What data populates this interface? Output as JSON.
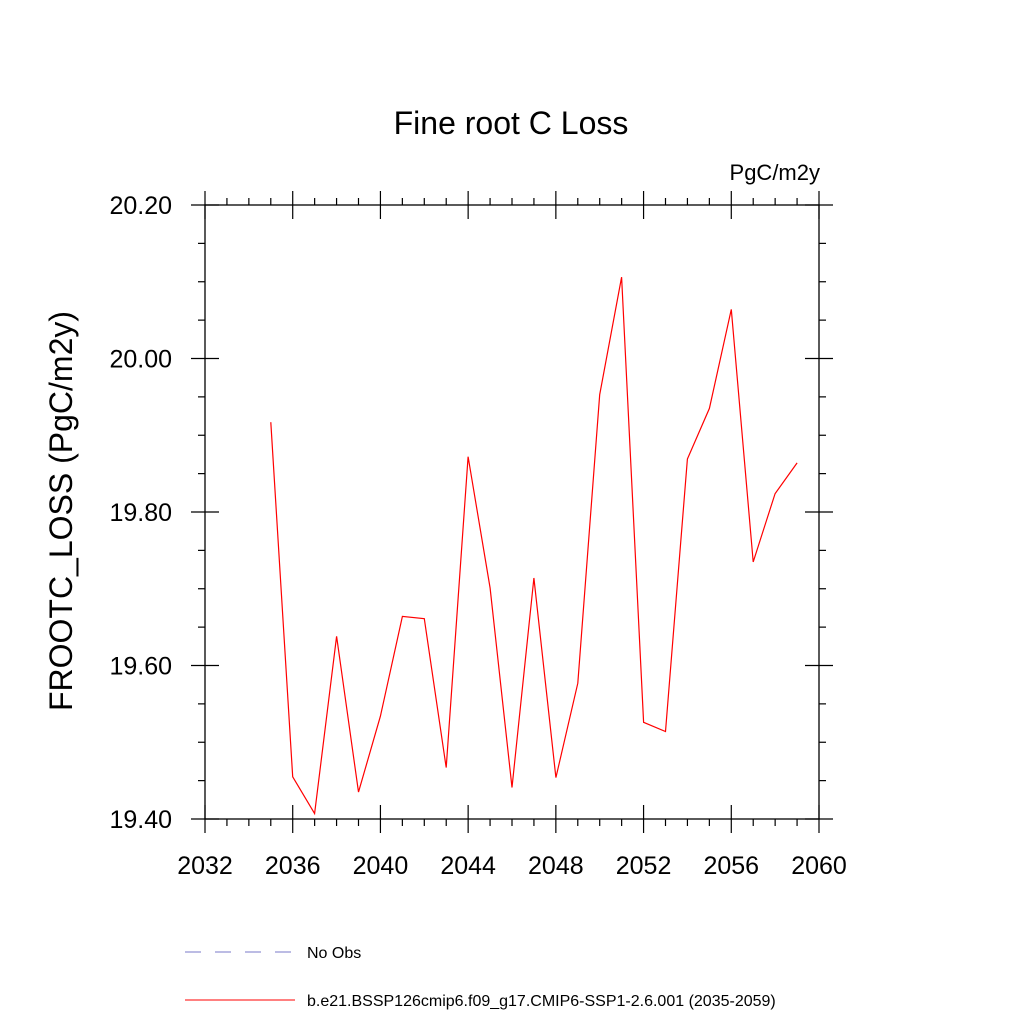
{
  "chart_data": {
    "type": "line",
    "title": "Fine root C Loss",
    "units_label": "PgC/m2y",
    "xlabel": "",
    "ylabel": "FROOTC_LOSS  (PgC/m2y)",
    "xlim": [
      2032,
      2060
    ],
    "ylim": [
      19.4,
      20.2
    ],
    "x_ticks": [
      2032,
      2036,
      2040,
      2044,
      2048,
      2052,
      2056,
      2060
    ],
    "y_ticks": [
      "19.40",
      "19.60",
      "19.80",
      "20.00",
      "20.20"
    ],
    "x_minor_step": 1,
    "y_minor_step": 0.05,
    "grid": false,
    "series": [
      {
        "name": "b.e21.BSSP126cmip6.f09_g17.CMIP6-SSP1-2.6.001 (2035-2059)",
        "color": "#ff0000",
        "style": "solid",
        "x": [
          2035,
          2036,
          2037,
          2038,
          2039,
          2040,
          2041,
          2042,
          2043,
          2044,
          2045,
          2046,
          2047,
          2048,
          2049,
          2050,
          2051,
          2052,
          2053,
          2054,
          2055,
          2056,
          2057,
          2058,
          2059
        ],
        "values": [
          19.917,
          19.455,
          19.407,
          19.638,
          19.435,
          19.534,
          19.664,
          19.661,
          19.467,
          19.872,
          19.701,
          19.441,
          19.714,
          19.454,
          19.577,
          19.953,
          20.106,
          19.526,
          19.514,
          19.869,
          19.935,
          20.064,
          19.735,
          19.824,
          19.864
        ]
      }
    ],
    "legend": {
      "position": "bottom",
      "entries": [
        {
          "label": "No Obs",
          "color": "#7a7ac8",
          "style": "dashed"
        },
        {
          "label": "b.e21.BSSP126cmip6.f09_g17.CMIP6-SSP1-2.6.001 (2035-2059)",
          "color": "#ff0000",
          "style": "solid"
        }
      ]
    }
  }
}
